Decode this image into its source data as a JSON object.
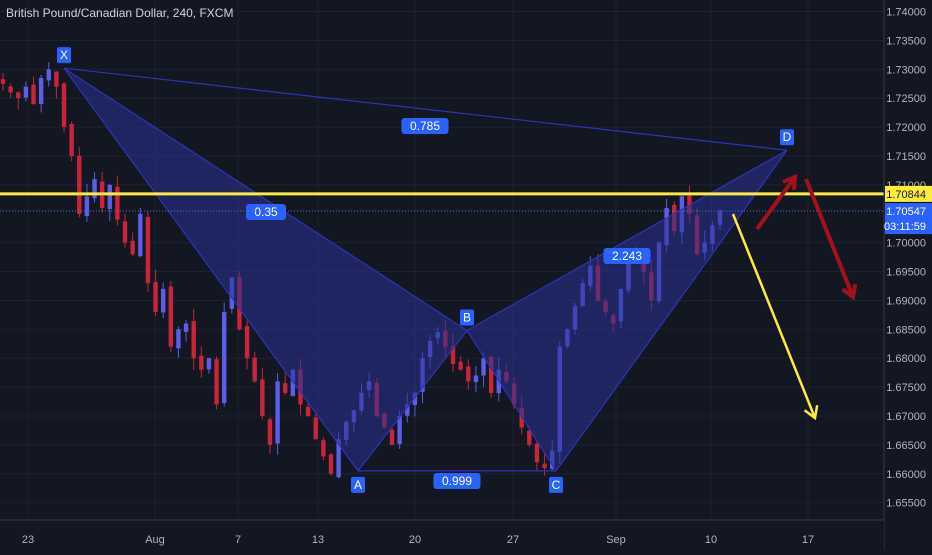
{
  "header": {
    "title": "British Pound/Canadian Dollar, 240, FXCM"
  },
  "colors": {
    "background": "#131722",
    "grid": "#1e2230",
    "axis_text": "#b2b5be",
    "bull": "#5b5ee6",
    "bear": "#c8243a",
    "pattern_fill": "#2a3196",
    "pattern_line": "#2c34b8",
    "point_label_bg": "#2962ff",
    "ratio_label_bg": "#2962ff",
    "yellow": "#ffeb3b",
    "red_arrow": "#a3121c",
    "current_price_bg": "#2962ff"
  },
  "chart_data": {
    "type": "candlestick",
    "symbol": "British Pound/Canadian Dollar",
    "timeframe": "240",
    "source": "FXCM",
    "ylim": [
      1.652,
      1.742
    ],
    "y_ticks": [
      "1.74000",
      "1.73500",
      "1.73000",
      "1.72500",
      "1.72000",
      "1.71500",
      "1.71000",
      "1.70000",
      "1.69500",
      "1.69000",
      "1.68500",
      "1.68000",
      "1.67500",
      "1.67000",
      "1.66500",
      "1.66000",
      "1.65500"
    ],
    "x_ticks": [
      "23",
      "Aug",
      "7",
      "13",
      "20",
      "27",
      "Sep",
      "10",
      "17"
    ],
    "grid": true,
    "series_close_path": [
      1.7275,
      1.726,
      1.725,
      1.727,
      1.724,
      1.7285,
      1.73,
      1.727,
      1.72,
      1.715,
      1.705,
      1.708,
      1.711,
      1.706,
      1.71,
      1.704,
      1.7,
      1.698,
      1.705,
      1.693,
      1.688,
      1.692,
      1.682,
      1.685,
      1.686,
      1.68,
      1.678,
      1.68,
      1.672,
      1.688,
      1.694,
      1.685,
      1.68,
      1.676,
      1.67,
      1.665,
      1.676,
      1.674,
      1.678,
      1.672,
      1.67,
      1.666,
      1.663,
      1.66,
      1.666,
      1.669,
      1.671,
      1.674,
      1.676,
      1.67,
      1.668,
      1.665,
      1.67,
      1.672,
      1.674,
      1.68,
      1.683,
      1.6845,
      1.682,
      1.679,
      1.678,
      1.676,
      1.677,
      1.68,
      1.674,
      1.678,
      1.676,
      1.672,
      1.668,
      1.665,
      1.662,
      1.661,
      1.664,
      1.682,
      1.685,
      1.689,
      1.693,
      1.696,
      1.69,
      1.688,
      1.686,
      1.692,
      1.698,
      1.697,
      1.695,
      1.69,
      1.7,
      1.706,
      1.702,
      1.708,
      1.705,
      1.698,
      1.7,
      1.703,
      1.7055
    ],
    "harmonic_pattern": {
      "points": [
        {
          "label": "X",
          "x": "Jul 26",
          "y": 1.7302
        },
        {
          "label": "A",
          "x": "Aug 15",
          "y": 1.6605
        },
        {
          "label": "B",
          "x": "Aug 22",
          "y": 1.6848
        },
        {
          "label": "C",
          "x": "Aug 29",
          "y": 1.6605
        },
        {
          "label": "D",
          "x": "Sep 15",
          "y": 1.716
        }
      ],
      "ratios": [
        {
          "label": "0.35",
          "between": "XB"
        },
        {
          "label": "0.999",
          "between": "AC"
        },
        {
          "label": "2.243",
          "between": "BD"
        },
        {
          "label": "0.785",
          "between": "XD"
        }
      ]
    },
    "horizontal_line": {
      "price": 1.70844,
      "label": "1.70844"
    },
    "current_price": {
      "price": 1.70547,
      "label": "1.70547",
      "countdown": "03:11:59"
    },
    "annotations": [
      {
        "type": "arrow",
        "color": "yellow",
        "direction": "down"
      },
      {
        "type": "arrow",
        "color": "red",
        "direction": "up-then-down"
      }
    ]
  }
}
